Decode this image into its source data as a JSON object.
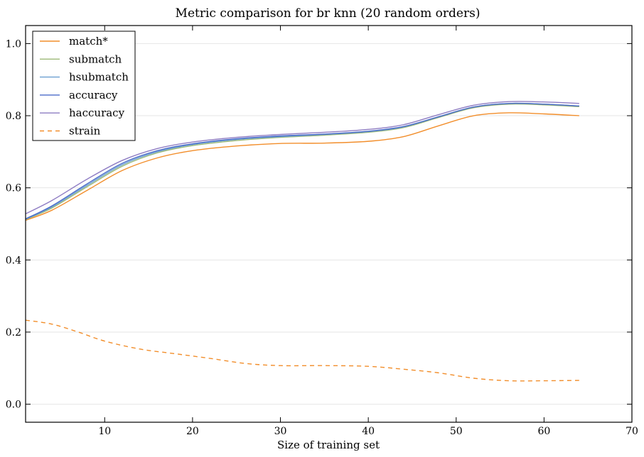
{
  "chart_data": {
    "type": "line",
    "title": "Metric comparison for br knn (20 random orders)",
    "xlabel": "Size of training set",
    "ylabel": "",
    "xlim": [
      1,
      70
    ],
    "ylim": [
      -0.05,
      1.05
    ],
    "xticks": [
      10,
      20,
      30,
      40,
      50,
      60,
      70
    ],
    "yticks": [
      0.0,
      0.2,
      0.4,
      0.6,
      0.8,
      1.0
    ],
    "xtick_labels": [
      "10",
      "20",
      "30",
      "40",
      "50",
      "60",
      "70"
    ],
    "ytick_labels": [
      "0.0",
      "0.2",
      "0.4",
      "0.6",
      "0.8",
      "1.0"
    ],
    "grid": "horizontal",
    "legend_position": "top-left",
    "series": [
      {
        "name": "match*",
        "color": "#f28e2b",
        "dash": "solid",
        "points": [
          [
            1,
            0.51
          ],
          [
            4,
            0.538
          ],
          [
            8,
            0.593
          ],
          [
            12,
            0.648
          ],
          [
            16,
            0.683
          ],
          [
            20,
            0.703
          ],
          [
            25,
            0.716
          ],
          [
            30,
            0.723
          ],
          [
            35,
            0.724
          ],
          [
            40,
            0.729
          ],
          [
            44,
            0.742
          ],
          [
            48,
            0.772
          ],
          [
            52,
            0.8
          ],
          [
            56,
            0.808
          ],
          [
            60,
            0.805
          ],
          [
            64,
            0.8
          ]
        ]
      },
      {
        "name": "submatch",
        "color": "#9dba78",
        "dash": "solid",
        "points": [
          [
            1,
            0.512
          ],
          [
            4,
            0.544
          ],
          [
            8,
            0.603
          ],
          [
            12,
            0.66
          ],
          [
            16,
            0.697
          ],
          [
            20,
            0.717
          ],
          [
            25,
            0.731
          ],
          [
            30,
            0.74
          ],
          [
            35,
            0.746
          ],
          [
            40,
            0.754
          ],
          [
            44,
            0.767
          ],
          [
            48,
            0.795
          ],
          [
            52,
            0.822
          ],
          [
            56,
            0.832
          ],
          [
            60,
            0.83
          ],
          [
            64,
            0.825
          ]
        ]
      },
      {
        "name": "hsubmatch",
        "color": "#6b9fd0",
        "dash": "solid",
        "points": [
          [
            1,
            0.513
          ],
          [
            4,
            0.547
          ],
          [
            8,
            0.607
          ],
          [
            12,
            0.664
          ],
          [
            16,
            0.7
          ],
          [
            20,
            0.72
          ],
          [
            25,
            0.734
          ],
          [
            30,
            0.742
          ],
          [
            35,
            0.748
          ],
          [
            40,
            0.756
          ],
          [
            44,
            0.769
          ],
          [
            48,
            0.797
          ],
          [
            52,
            0.824
          ],
          [
            56,
            0.834
          ],
          [
            60,
            0.832
          ],
          [
            64,
            0.827
          ]
        ]
      },
      {
        "name": "accuracy",
        "color": "#4a6bc9",
        "dash": "solid",
        "points": [
          [
            1,
            0.514
          ],
          [
            4,
            0.55
          ],
          [
            8,
            0.611
          ],
          [
            12,
            0.668
          ],
          [
            16,
            0.703
          ],
          [
            20,
            0.722
          ],
          [
            25,
            0.736
          ],
          [
            30,
            0.744
          ],
          [
            35,
            0.749
          ],
          [
            40,
            0.757
          ],
          [
            44,
            0.77
          ],
          [
            48,
            0.797
          ],
          [
            52,
            0.824
          ],
          [
            56,
            0.834
          ],
          [
            60,
            0.832
          ],
          [
            64,
            0.827
          ]
        ]
      },
      {
        "name": "haccuracy",
        "color": "#8e7cc3",
        "dash": "solid",
        "points": [
          [
            1,
            0.528
          ],
          [
            4,
            0.565
          ],
          [
            8,
            0.624
          ],
          [
            12,
            0.676
          ],
          [
            16,
            0.709
          ],
          [
            20,
            0.727
          ],
          [
            25,
            0.74
          ],
          [
            30,
            0.748
          ],
          [
            35,
            0.754
          ],
          [
            40,
            0.762
          ],
          [
            44,
            0.775
          ],
          [
            48,
            0.803
          ],
          [
            52,
            0.829
          ],
          [
            56,
            0.839
          ],
          [
            60,
            0.838
          ],
          [
            64,
            0.834
          ]
        ]
      },
      {
        "name": "strain",
        "color": "#f28e2b",
        "dash": "dashed",
        "points": [
          [
            1,
            0.233
          ],
          [
            4,
            0.222
          ],
          [
            7,
            0.2
          ],
          [
            10,
            0.175
          ],
          [
            14,
            0.153
          ],
          [
            18,
            0.14
          ],
          [
            22,
            0.127
          ],
          [
            26,
            0.113
          ],
          [
            30,
            0.107
          ],
          [
            35,
            0.107
          ],
          [
            40,
            0.105
          ],
          [
            44,
            0.097
          ],
          [
            48,
            0.087
          ],
          [
            52,
            0.072
          ],
          [
            56,
            0.065
          ],
          [
            60,
            0.065
          ],
          [
            64,
            0.066
          ]
        ]
      }
    ]
  }
}
